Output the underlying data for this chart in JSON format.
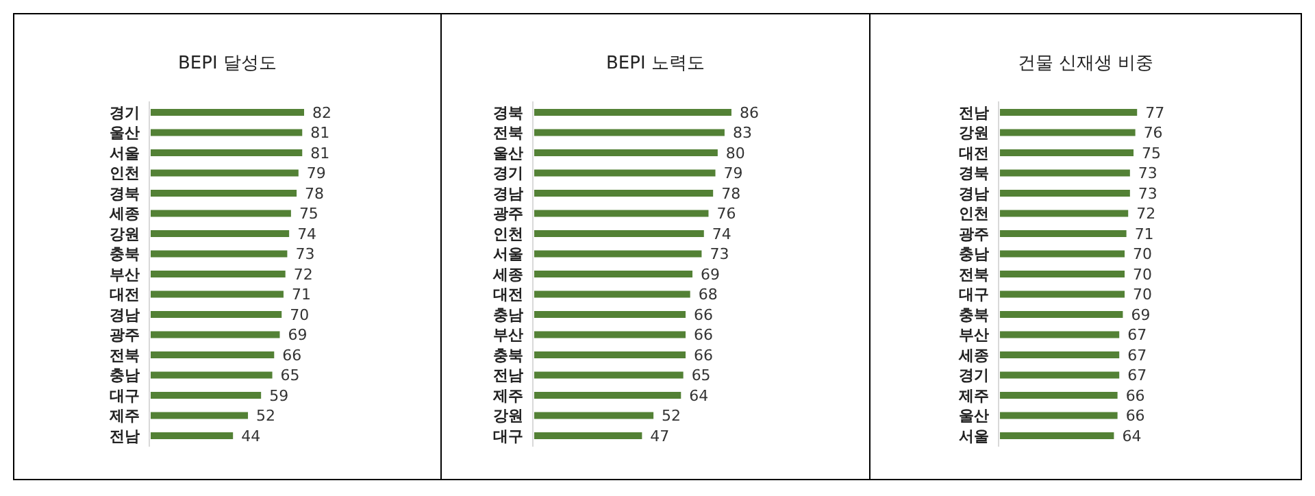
{
  "chart_data": [
    {
      "type": "bar",
      "orientation": "horizontal",
      "title": "BEPI 달성도",
      "categories": [
        "경기",
        "울산",
        "서울",
        "인천",
        "경북",
        "세종",
        "강원",
        "충북",
        "부산",
        "대전",
        "경남",
        "광주",
        "전북",
        "충남",
        "대구",
        "제주",
        "전남"
      ],
      "values": [
        82,
        81,
        81,
        79,
        78,
        75,
        74,
        73,
        72,
        71,
        70,
        69,
        66,
        65,
        59,
        52,
        44
      ],
      "color": "#538135",
      "data_labels": true
    },
    {
      "type": "bar",
      "orientation": "horizontal",
      "title": "BEPI 노력도",
      "categories": [
        "경북",
        "전북",
        "울산",
        "경기",
        "경남",
        "광주",
        "인천",
        "서울",
        "세종",
        "대전",
        "충남",
        "부산",
        "충북",
        "전남",
        "제주",
        "강원",
        "대구"
      ],
      "values": [
        86,
        83,
        80,
        79,
        78,
        76,
        74,
        73,
        69,
        68,
        66,
        66,
        66,
        65,
        64,
        52,
        47
      ],
      "color": "#538135",
      "data_labels": true
    },
    {
      "type": "bar",
      "orientation": "horizontal",
      "title": "건물 신재생 비중",
      "categories": [
        "전남",
        "강원",
        "대전",
        "경북",
        "경남",
        "인천",
        "광주",
        "충남",
        "전북",
        "대구",
        "충북",
        "부산",
        "세종",
        "경기",
        "제주",
        "울산",
        "서울"
      ],
      "values": [
        77,
        76,
        75,
        73,
        73,
        72,
        71,
        70,
        70,
        70,
        69,
        67,
        67,
        67,
        66,
        66,
        64
      ],
      "color": "#538135",
      "data_labels": true
    }
  ]
}
